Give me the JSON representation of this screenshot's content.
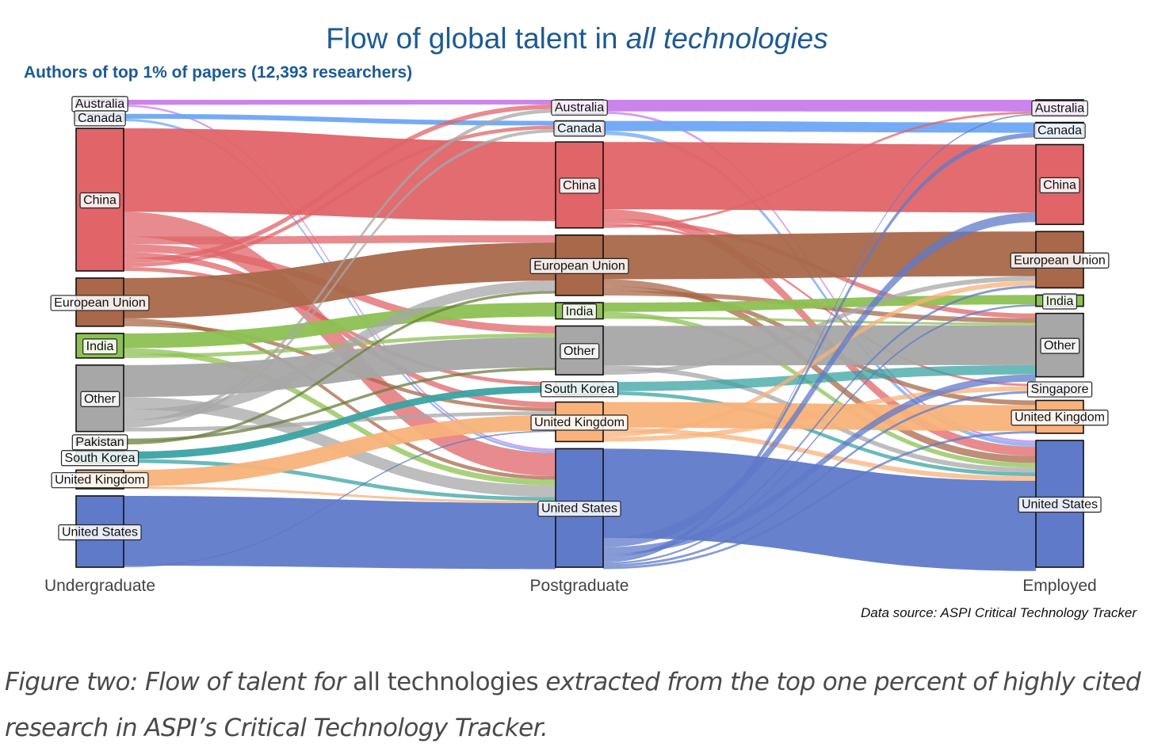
{
  "chart_data": {
    "type": "sankey",
    "title_prefix": "Flow of global talent in ",
    "title_emphasis": "all technologies",
    "subtitle": "Authors of top 1% of papers (12,393 researchers)",
    "total_researchers": 12393,
    "stages": [
      "Undergraduate",
      "Postgraduate",
      "Employed"
    ],
    "source_note": "Data source: ASPI Critical Technology Tracker",
    "colors": {
      "Australia": "#c77dea",
      "Canada": "#6ea6f5",
      "China": "#e06468",
      "European Union": "#a9684a",
      "India": "#8cc152",
      "Other": "#a7a7a7",
      "Pakistan": "#6b7d3c",
      "South Korea": "#3aa3a3",
      "United Kingdom": "#f8b27a",
      "United States": "#5f7ac9",
      "Singapore": "#d8c7e8"
    },
    "nodes": {
      "Undergraduate": [
        {
          "name": "Australia",
          "share": 1.4
        },
        {
          "name": "Canada",
          "share": 1.5
        },
        {
          "name": "China",
          "share": 29.0
        },
        {
          "name": "European Union",
          "share": 9.8
        },
        {
          "name": "India",
          "share": 5.0
        },
        {
          "name": "Other",
          "share": 13.5
        },
        {
          "name": "Pakistan",
          "share": 1.2
        },
        {
          "name": "South Korea",
          "share": 2.3
        },
        {
          "name": "United Kingdom",
          "share": 3.8
        },
        {
          "name": "United States",
          "share": 14.5
        }
      ],
      "Postgraduate": [
        {
          "name": "Australia",
          "share": 3.0
        },
        {
          "name": "Canada",
          "share": 3.0
        },
        {
          "name": "China",
          "share": 18.5
        },
        {
          "name": "European Union",
          "share": 13.0
        },
        {
          "name": "India",
          "share": 3.5
        },
        {
          "name": "Other",
          "share": 10.5
        },
        {
          "name": "South Korea",
          "share": 2.8
        },
        {
          "name": "United Kingdom",
          "share": 8.5
        },
        {
          "name": "United States",
          "share": 25.5
        }
      ],
      "Employed": [
        {
          "name": "Australia",
          "share": 3.3
        },
        {
          "name": "Canada",
          "share": 3.2
        },
        {
          "name": "China",
          "share": 17.0
        },
        {
          "name": "European Union",
          "share": 12.0
        },
        {
          "name": "India",
          "share": 2.4
        },
        {
          "name": "Other",
          "share": 13.5
        },
        {
          "name": "Singapore",
          "share": 2.0
        },
        {
          "name": "United Kingdom",
          "share": 7.0
        },
        {
          "name": "United States",
          "share": 27.0
        }
      ]
    },
    "flows_undergrad_to_postgrad": [
      {
        "from": "Australia",
        "to": "Australia",
        "value": 1.0
      },
      {
        "from": "Australia",
        "to": "United States",
        "value": 0.4
      },
      {
        "from": "Canada",
        "to": "Canada",
        "value": 1.0
      },
      {
        "from": "Canada",
        "to": "United States",
        "value": 0.5
      },
      {
        "from": "China",
        "to": "China",
        "value": 17.0
      },
      {
        "from": "China",
        "to": "United States",
        "value": 5.0
      },
      {
        "from": "China",
        "to": "European Union",
        "value": 1.6
      },
      {
        "from": "China",
        "to": "Other",
        "value": 1.6
      },
      {
        "from": "China",
        "to": "United Kingdom",
        "value": 1.2
      },
      {
        "from": "China",
        "to": "Australia",
        "value": 1.0
      },
      {
        "from": "China",
        "to": "Canada",
        "value": 0.8
      },
      {
        "from": "China",
        "to": "South Korea",
        "value": 0.8
      },
      {
        "from": "European Union",
        "to": "European Union",
        "value": 8.2
      },
      {
        "from": "European Union",
        "to": "United States",
        "value": 0.8
      },
      {
        "from": "European Union",
        "to": "United Kingdom",
        "value": 0.8
      },
      {
        "from": "India",
        "to": "India",
        "value": 3.0
      },
      {
        "from": "India",
        "to": "United States",
        "value": 1.2
      },
      {
        "from": "India",
        "to": "Other",
        "value": 0.8
      },
      {
        "from": "Other",
        "to": "Other",
        "value": 6.5
      },
      {
        "from": "Other",
        "to": "United States",
        "value": 2.5
      },
      {
        "from": "Other",
        "to": "European Union",
        "value": 2.2
      },
      {
        "from": "Other",
        "to": "Australia",
        "value": 0.8
      },
      {
        "from": "Other",
        "to": "Canada",
        "value": 0.7
      },
      {
        "from": "Other",
        "to": "United Kingdom",
        "value": 0.8
      },
      {
        "from": "Pakistan",
        "to": "Other",
        "value": 0.6
      },
      {
        "from": "Pakistan",
        "to": "European Union",
        "value": 0.6
      },
      {
        "from": "South Korea",
        "to": "South Korea",
        "value": 1.5
      },
      {
        "from": "South Korea",
        "to": "United States",
        "value": 0.8
      },
      {
        "from": "United Kingdom",
        "to": "United Kingdom",
        "value": 3.3
      },
      {
        "from": "United Kingdom",
        "to": "United States",
        "value": 0.5
      },
      {
        "from": "United States",
        "to": "United States",
        "value": 14.2
      },
      {
        "from": "United States",
        "to": "United Kingdom",
        "value": 0.3
      }
    ],
    "flows_postgrad_to_employed": [
      {
        "from": "Australia",
        "to": "Australia",
        "value": 2.5
      },
      {
        "from": "Australia",
        "to": "United States",
        "value": 0.5
      },
      {
        "from": "Canada",
        "to": "Canada",
        "value": 2.2
      },
      {
        "from": "Canada",
        "to": "United States",
        "value": 0.8
      },
      {
        "from": "China",
        "to": "China",
        "value": 14.5
      },
      {
        "from": "China",
        "to": "United States",
        "value": 2.0
      },
      {
        "from": "China",
        "to": "Other",
        "value": 1.0
      },
      {
        "from": "China",
        "to": "Singapore",
        "value": 0.5
      },
      {
        "from": "China",
        "to": "Australia",
        "value": 0.5
      },
      {
        "from": "European Union",
        "to": "European Union",
        "value": 9.5
      },
      {
        "from": "European Union",
        "to": "United States",
        "value": 1.5
      },
      {
        "from": "European Union",
        "to": "United Kingdom",
        "value": 1.0
      },
      {
        "from": "European Union",
        "to": "Other",
        "value": 1.0
      },
      {
        "from": "India",
        "to": "India",
        "value": 2.0
      },
      {
        "from": "India",
        "to": "United States",
        "value": 1.0
      },
      {
        "from": "India",
        "to": "Other",
        "value": 0.5
      },
      {
        "from": "Other",
        "to": "Other",
        "value": 8.5
      },
      {
        "from": "Other",
        "to": "United States",
        "value": 1.0
      },
      {
        "from": "Other",
        "to": "European Union",
        "value": 1.0
      },
      {
        "from": "South Korea",
        "to": "Other",
        "value": 2.0
      },
      {
        "from": "South Korea",
        "to": "United States",
        "value": 0.8
      },
      {
        "from": "United Kingdom",
        "to": "United Kingdom",
        "value": 5.5
      },
      {
        "from": "United Kingdom",
        "to": "United States",
        "value": 1.0
      },
      {
        "from": "United Kingdom",
        "to": "European Union",
        "value": 1.0
      },
      {
        "from": "United Kingdom",
        "to": "Singapore",
        "value": 1.0
      },
      {
        "from": "United States",
        "to": "United States",
        "value": 19.2
      },
      {
        "from": "United States",
        "to": "China",
        "value": 2.0
      },
      {
        "from": "United States",
        "to": "Other",
        "value": 1.5
      },
      {
        "from": "United States",
        "to": "European Union",
        "value": 0.5
      },
      {
        "from": "United States",
        "to": "Canada",
        "value": 1.0
      },
      {
        "from": "United States",
        "to": "Australia",
        "value": 0.3
      },
      {
        "from": "United States",
        "to": "India",
        "value": 0.4
      },
      {
        "from": "United States",
        "to": "Singapore",
        "value": 0.5
      },
      {
        "from": "United States",
        "to": "United Kingdom",
        "value": 0.5
      }
    ]
  },
  "caption": {
    "part1": "Figure two: Flow of talent for ",
    "part2": "all technologies",
    "part3": " extracted from the top one percent of highly cited research in ASPI’s Critical Technology Tracker."
  }
}
